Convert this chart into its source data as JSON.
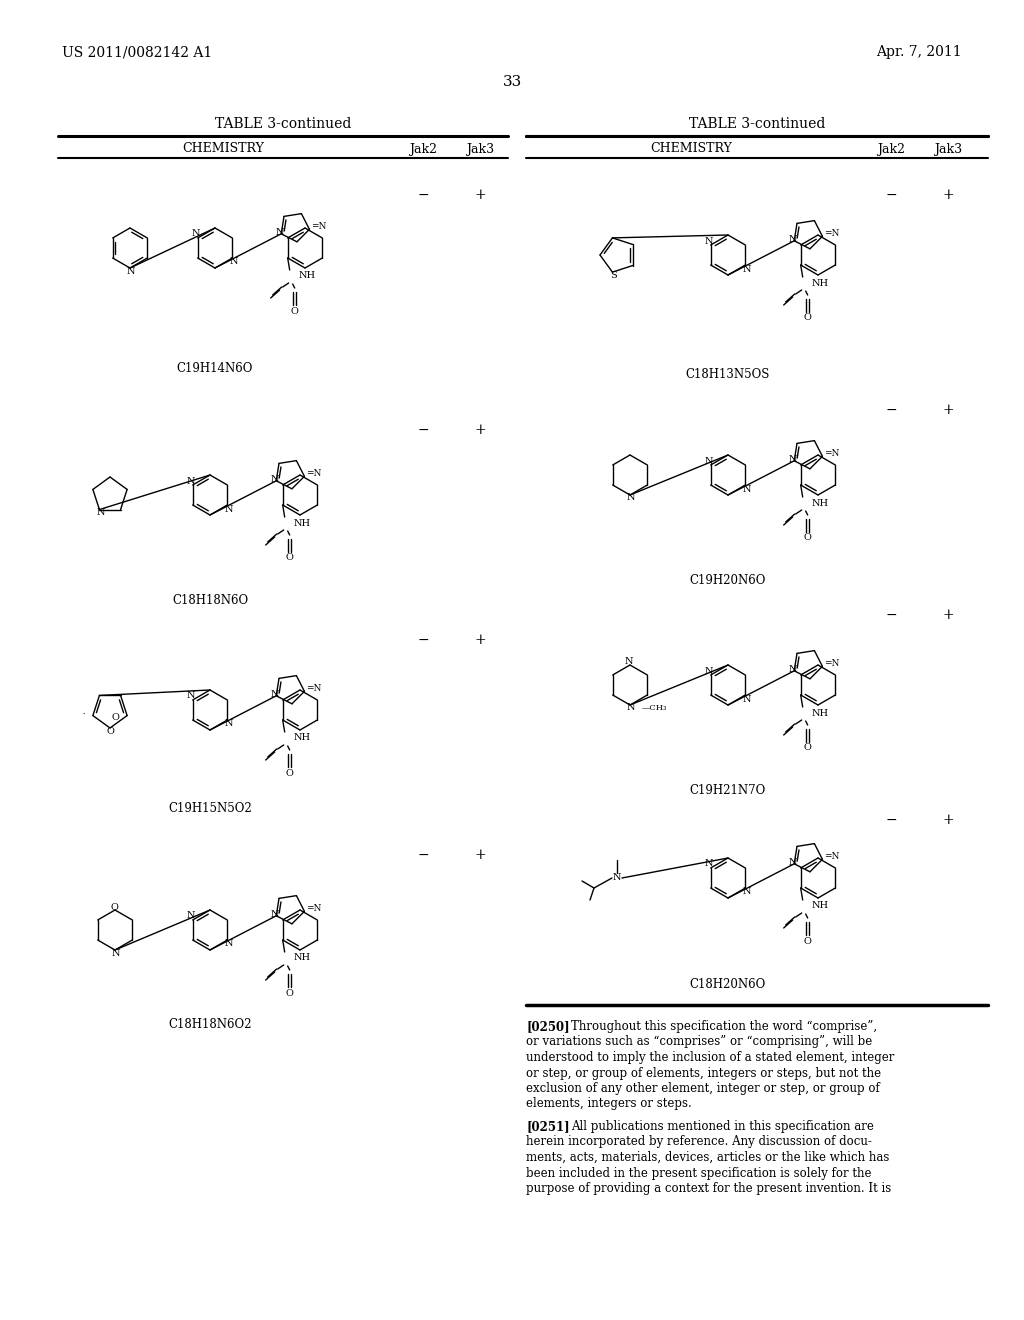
{
  "bg_color": "#ffffff",
  "header_left": "US 2011/0082142 A1",
  "header_right": "Apr. 7, 2011",
  "page_number": "33",
  "table_title": "TABLE 3-continued",
  "col_headers": [
    "CHEMISTRY",
    "Jak2",
    "Jak3"
  ],
  "left_formulas": [
    "C19H14N6O",
    "C18H18N6O",
    "C19H15N5O2",
    "C18H18N6O2"
  ],
  "right_formulas": [
    "C18H13N5OS",
    "C19H20N6O",
    "C19H21N7O",
    "C18H20N6O"
  ],
  "paragraph_0250": "[0250]    Throughout this specification the word “comprise”, or variations such as “comprises” or “comprising”, will be understood to imply the inclusion of a stated element, integer or step, or group of elements, integers or steps, but not the exclusion of any other element, integer or step, or group of elements, integers or steps.",
  "paragraph_0251": "[0251]    All publications mentioned in this specification are herein incorporated by reference. Any discussion of documents, acts, materials, devices, articles or the like which has been included in the present specification is solely for the purpose of providing a context for the present invention. It is"
}
